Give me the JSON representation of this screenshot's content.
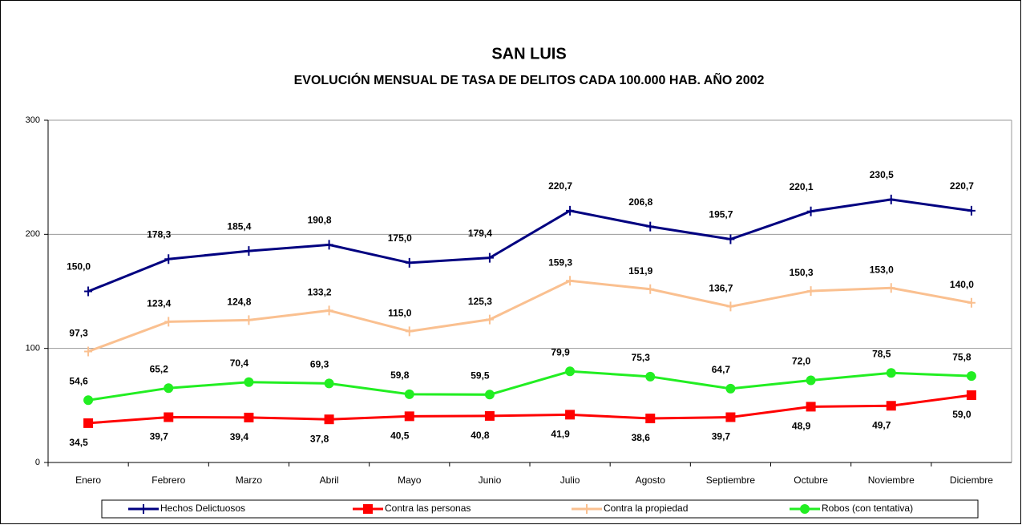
{
  "chart_data": {
    "type": "line",
    "title": "SAN LUIS",
    "subtitle": "EVOLUCIÓN MENSUAL DE TASA DE DELITOS CADA 100.000 HAB. AÑO 2002",
    "categories": [
      "Enero",
      "Febrero",
      "Marzo",
      "Abril",
      "Mayo",
      "Junio",
      "Julio",
      "Agosto",
      "Septiembre",
      "Octubre",
      "Noviembre",
      "Diciembre"
    ],
    "ylim": [
      0,
      300
    ],
    "yticks": [
      0,
      100,
      200,
      300
    ],
    "grid": true,
    "legend": "bottom",
    "series": [
      {
        "name": "Hechos Delictuosos",
        "color": "#000080",
        "marker": "plus",
        "values": [
          150.0,
          178.3,
          185.4,
          190.8,
          175.0,
          179.4,
          220.7,
          206.8,
          195.7,
          220.1,
          230.5,
          220.7
        ],
        "value_labels": [
          "150,0",
          "178,3",
          "185,4",
          "190,8",
          "175,0",
          "179,4",
          "220,7",
          "206,8",
          "195,7",
          "220,1",
          "230,5",
          "220,7"
        ]
      },
      {
        "name": "Contra las personas",
        "color": "#ff0000",
        "marker": "square",
        "values": [
          34.5,
          39.7,
          39.4,
          37.8,
          40.5,
          40.8,
          41.9,
          38.6,
          39.7,
          48.9,
          49.7,
          59.0
        ],
        "value_labels": [
          "34,5",
          "39,7",
          "39,4",
          "37,8",
          "40,5",
          "40,8",
          "41,9",
          "38,6",
          "39,7",
          "48,9",
          "49,7",
          "59,0"
        ]
      },
      {
        "name": "Contra la propiedad",
        "color": "#fac090",
        "marker": "plus",
        "values": [
          97.3,
          123.4,
          124.8,
          133.2,
          115.0,
          125.3,
          159.3,
          151.9,
          136.7,
          150.3,
          153.0,
          140.0
        ],
        "value_labels": [
          "97,3",
          "123,4",
          "124,8",
          "133,2",
          "115,0",
          "125,3",
          "159,3",
          "151,9",
          "136,7",
          "150,3",
          "153,0",
          "140,0"
        ]
      },
      {
        "name": "Robos (con tentativa)",
        "color": "#22ee22",
        "marker": "circle",
        "values": [
          54.6,
          65.2,
          70.4,
          69.3,
          59.8,
          59.5,
          79.9,
          75.3,
          64.7,
          72.0,
          78.5,
          75.8
        ],
        "value_labels": [
          "54,6",
          "65,2",
          "70,4",
          "69,3",
          "59,8",
          "59,5",
          "79,9",
          "75,3",
          "64,7",
          "72,0",
          "78,5",
          "75,8"
        ]
      }
    ]
  }
}
